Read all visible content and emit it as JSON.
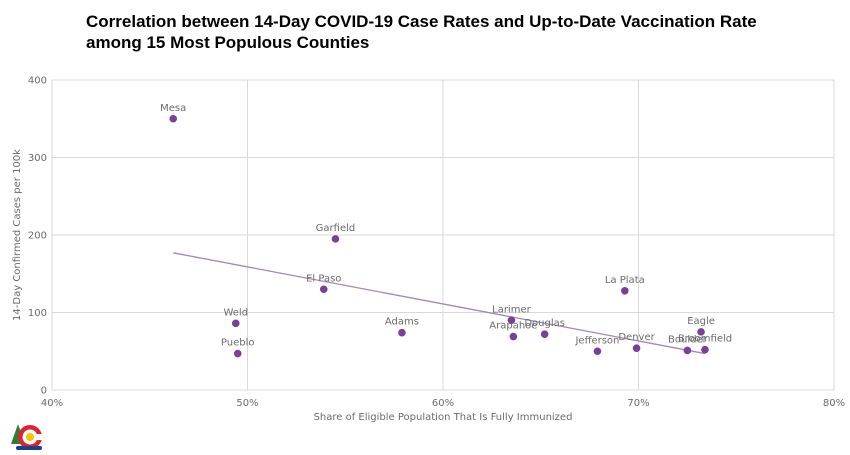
{
  "title_lines": [
    "Correlation between 14-Day COVID-19 Case Rates and Up-to-Date Vaccination Rate",
    "among 15 Most Populous Counties"
  ],
  "colors": {
    "point": "#7a3f98",
    "trend": "#a783be",
    "grid": "#d9d9d9",
    "logo_red": "#d62630",
    "logo_blue": "#1d3f8a",
    "logo_green": "#2e7d32",
    "logo_yellow": "#f5c400"
  },
  "logo": {
    "icon": "colorado-c-logo"
  },
  "chart_data": {
    "type": "scatter",
    "title": "Correlation between 14-Day COVID-19 Case Rates and Up-to-Date Vaccination Rate among 15 Most Populous Counties",
    "xlabel": "Share of Eligible Population That Is Fully Immunized",
    "ylabel": "14-Day Confirmed Cases per 100k",
    "xlim": [
      40,
      80
    ],
    "ylim": [
      0,
      400
    ],
    "x_ticks": [
      40,
      50,
      60,
      70,
      80
    ],
    "x_tick_labels": [
      "40%",
      "50%",
      "60%",
      "70%",
      "80%"
    ],
    "y_ticks": [
      0,
      100,
      200,
      300,
      400
    ],
    "y_tick_labels": [
      "0",
      "100",
      "200",
      "300",
      "400"
    ],
    "grid": true,
    "legend": "none",
    "points": [
      {
        "label": "Mesa",
        "x": 46.2,
        "y": 350
      },
      {
        "label": "Garfield",
        "x": 54.5,
        "y": 195
      },
      {
        "label": "El Paso",
        "x": 53.9,
        "y": 130
      },
      {
        "label": "Weld",
        "x": 49.4,
        "y": 86
      },
      {
        "label": "Pueblo",
        "x": 49.5,
        "y": 47
      },
      {
        "label": "Adams",
        "x": 57.9,
        "y": 74
      },
      {
        "label": "Larimer",
        "x": 63.5,
        "y": 90
      },
      {
        "label": "Arapahoe",
        "x": 63.6,
        "y": 69
      },
      {
        "label": "Douglas",
        "x": 65.2,
        "y": 72
      },
      {
        "label": "Jefferson",
        "x": 67.9,
        "y": 50
      },
      {
        "label": "La Plata",
        "x": 69.3,
        "y": 128
      },
      {
        "label": "Denver",
        "x": 69.9,
        "y": 54
      },
      {
        "label": "Boulder",
        "x": 72.5,
        "y": 51
      },
      {
        "label": "Eagle",
        "x": 73.2,
        "y": 75
      },
      {
        "label": "Broomfield",
        "x": 73.4,
        "y": 52
      }
    ],
    "trendline": {
      "x": [
        46.2,
        73.4
      ],
      "y": [
        177,
        47
      ]
    }
  }
}
